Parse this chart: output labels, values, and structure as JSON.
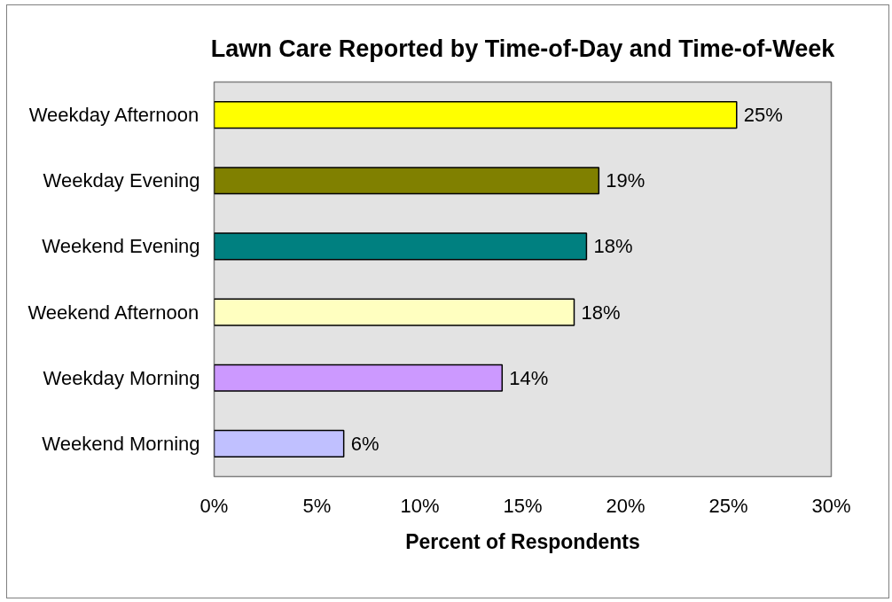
{
  "chart_data": {
    "type": "bar",
    "orientation": "horizontal",
    "title": "Lawn Care Reported by Time-of-Day and Time-of-Week",
    "xlabel": "Percent of Respondents",
    "categories": [
      "Weekday Afternoon",
      "Weekday Evening",
      "Weekend Evening",
      "Weekend Afternoon",
      "Weekday Morning",
      "Weekend Morning"
    ],
    "values": [
      25.4,
      18.7,
      18.1,
      17.5,
      14.0,
      6.3
    ],
    "colors": [
      "#ffff00",
      "#808000",
      "#008080",
      "#ffffc0",
      "#cc99ff",
      "#c0c0ff"
    ],
    "value_labels": [
      "25%",
      "19%",
      "18%",
      "18%",
      "14%",
      "6%"
    ],
    "xlim": [
      0,
      30
    ],
    "xticks": [
      {
        "value": 0,
        "label": "0%"
      },
      {
        "value": 5,
        "label": "5%"
      },
      {
        "value": 10,
        "label": "10%"
      },
      {
        "value": 15,
        "label": "15%"
      },
      {
        "value": 20,
        "label": "20%"
      },
      {
        "value": 25,
        "label": "25%"
      },
      {
        "value": 30,
        "label": "30%"
      }
    ]
  }
}
